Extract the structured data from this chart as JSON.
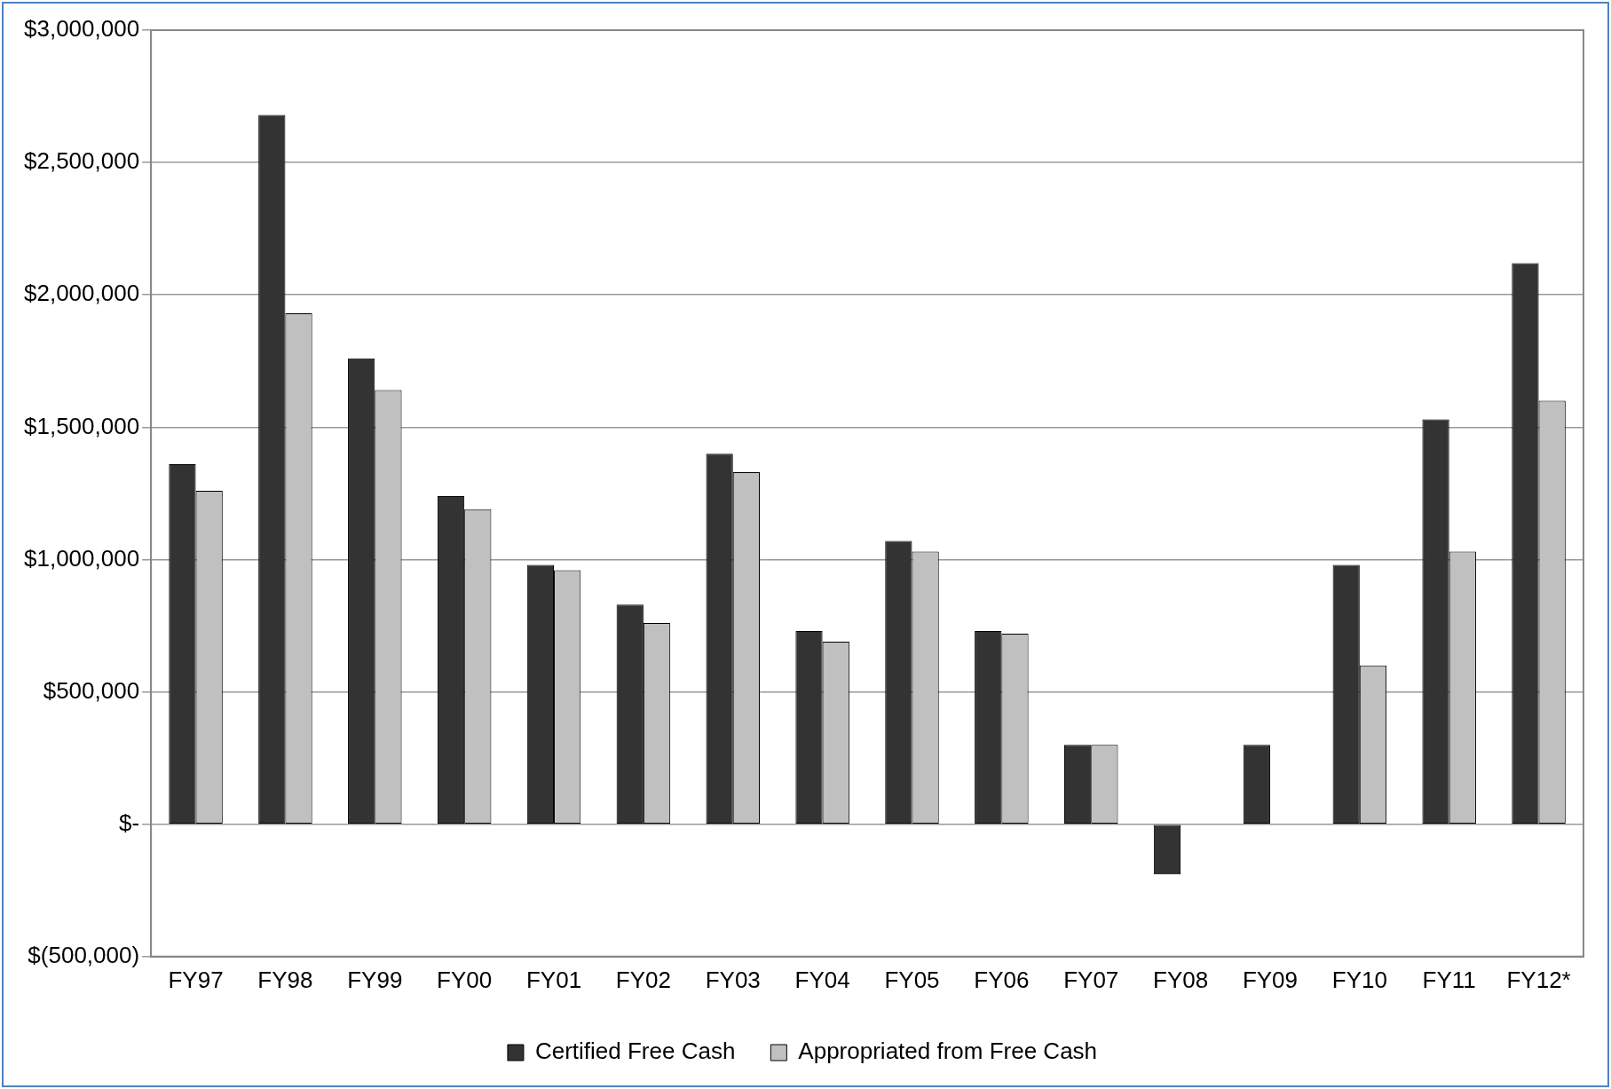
{
  "chart_data": {
    "type": "bar",
    "categories": [
      "FY97",
      "FY98",
      "FY99",
      "FY00",
      "FY01",
      "FY02",
      "FY03",
      "FY04",
      "FY05",
      "FY06",
      "FY07",
      "FY08",
      "FY09",
      "FY10",
      "FY11",
      "FY12*"
    ],
    "series": [
      {
        "name": "Certified Free Cash",
        "color": "#333333",
        "values": [
          1360000,
          2680000,
          1760000,
          1240000,
          980000,
          830000,
          1400000,
          730000,
          1070000,
          730000,
          300000,
          -190000,
          300000,
          980000,
          1530000,
          2120000
        ]
      },
      {
        "name": "Appropriated from Free Cash",
        "color": "#c0c0c0",
        "values": [
          1260000,
          1930000,
          1640000,
          1190000,
          960000,
          760000,
          1330000,
          690000,
          1030000,
          720000,
          300000,
          null,
          null,
          600000,
          1030000,
          1600000
        ]
      }
    ],
    "ylim": [
      -500000,
      3000000
    ],
    "yticks": [
      {
        "value": -500000,
        "label": "$(500,000)"
      },
      {
        "value": 0,
        "label": "$-"
      },
      {
        "value": 500000,
        "label": "$500,000"
      },
      {
        "value": 1000000,
        "label": "$1,000,000"
      },
      {
        "value": 1500000,
        "label": "$1,500,000"
      },
      {
        "value": 2000000,
        "label": "$2,000,000"
      },
      {
        "value": 2500000,
        "label": "$2,500,000"
      },
      {
        "value": 3000000,
        "label": "$3,000,000"
      }
    ],
    "grid": "y",
    "legend": "bottom"
  }
}
